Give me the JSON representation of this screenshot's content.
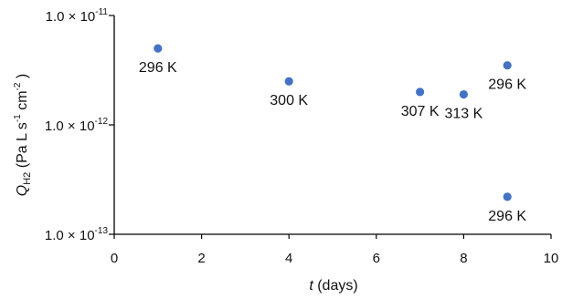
{
  "chart_data": {
    "type": "scatter",
    "title": "",
    "xlabel": {
      "var": "t",
      "rest": " (days)"
    },
    "ylabel": {
      "var": "Q",
      "sub": "H2",
      "units_pre": " (Pa L s",
      "exp1": "-1",
      "units_mid": " cm",
      "exp2": "-2",
      "units_post": " )"
    },
    "xlim": [
      0,
      10
    ],
    "ylim": [
      1e-13,
      1e-11
    ],
    "yscale": "log",
    "grid": false,
    "x_ticks": [
      0,
      2,
      4,
      6,
      8,
      10
    ],
    "x_tick_labels": [
      "0",
      "2",
      "4",
      "6",
      "8",
      "10"
    ],
    "y_ticks": [
      {
        "value": 1e-11,
        "mantissa": "1.0 × 10",
        "exponent": "-11"
      },
      {
        "value": 1e-12,
        "mantissa": "1.0 × 10",
        "exponent": "-12"
      },
      {
        "value": 1e-13,
        "mantissa": "1.0 × 10",
        "exponent": "-13"
      }
    ],
    "points": [
      {
        "x": 1,
        "y": 5e-12,
        "label": "296 K"
      },
      {
        "x": 4,
        "y": 2.5e-12,
        "label": "300 K"
      },
      {
        "x": 7,
        "y": 2e-12,
        "label": "307 K"
      },
      {
        "x": 8,
        "y": 1.9e-12,
        "label": "313 K"
      },
      {
        "x": 9,
        "y": 3.5e-12,
        "label": "296 K"
      },
      {
        "x": 9,
        "y": 2.2e-13,
        "label": "296 K"
      }
    ],
    "marker_color": "#4472c4"
  }
}
